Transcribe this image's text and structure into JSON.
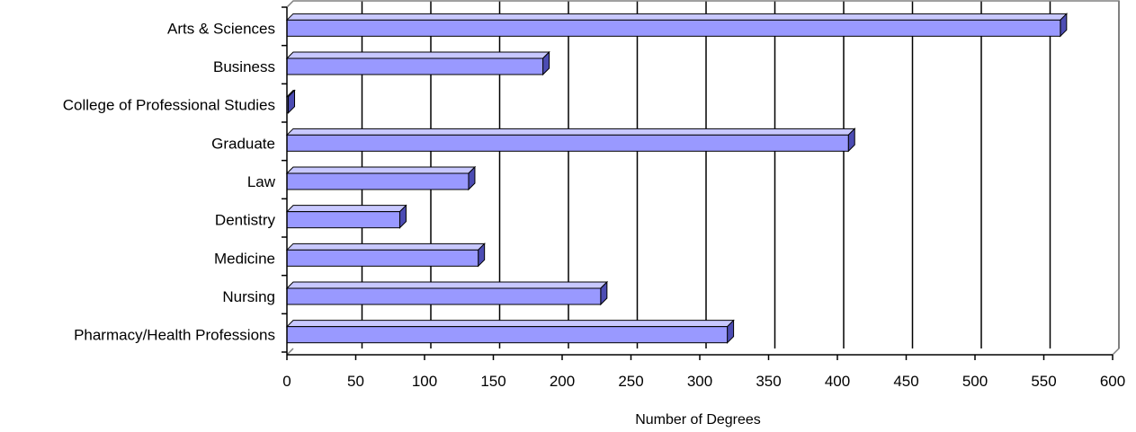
{
  "chart_data": {
    "type": "bar",
    "orientation": "horizontal",
    "style": "3d",
    "categories": [
      "Arts & Sciences",
      "Business",
      "College of Professional Studies",
      "Graduate",
      "Law",
      "Dentistry",
      "Medicine",
      "Nursing",
      "Pharmacy/Health Professions"
    ],
    "values": [
      562,
      186,
      1,
      408,
      132,
      82,
      139,
      228,
      320
    ],
    "xlabel": "Number of Degrees",
    "ylabel": "",
    "xlim": [
      0,
      600
    ],
    "x_ticks": [
      "0",
      "50",
      "100",
      "150",
      "200",
      "250",
      "300",
      "350",
      "400",
      "450",
      "500",
      "550",
      "600"
    ],
    "grid": "vertical",
    "legend": "none",
    "colors": {
      "bar_front": "#9999ff",
      "bar_top": "#c8c8ff",
      "bar_side": "#4c4cb3",
      "grid": "#000000",
      "wall_frame": "#808080"
    }
  }
}
